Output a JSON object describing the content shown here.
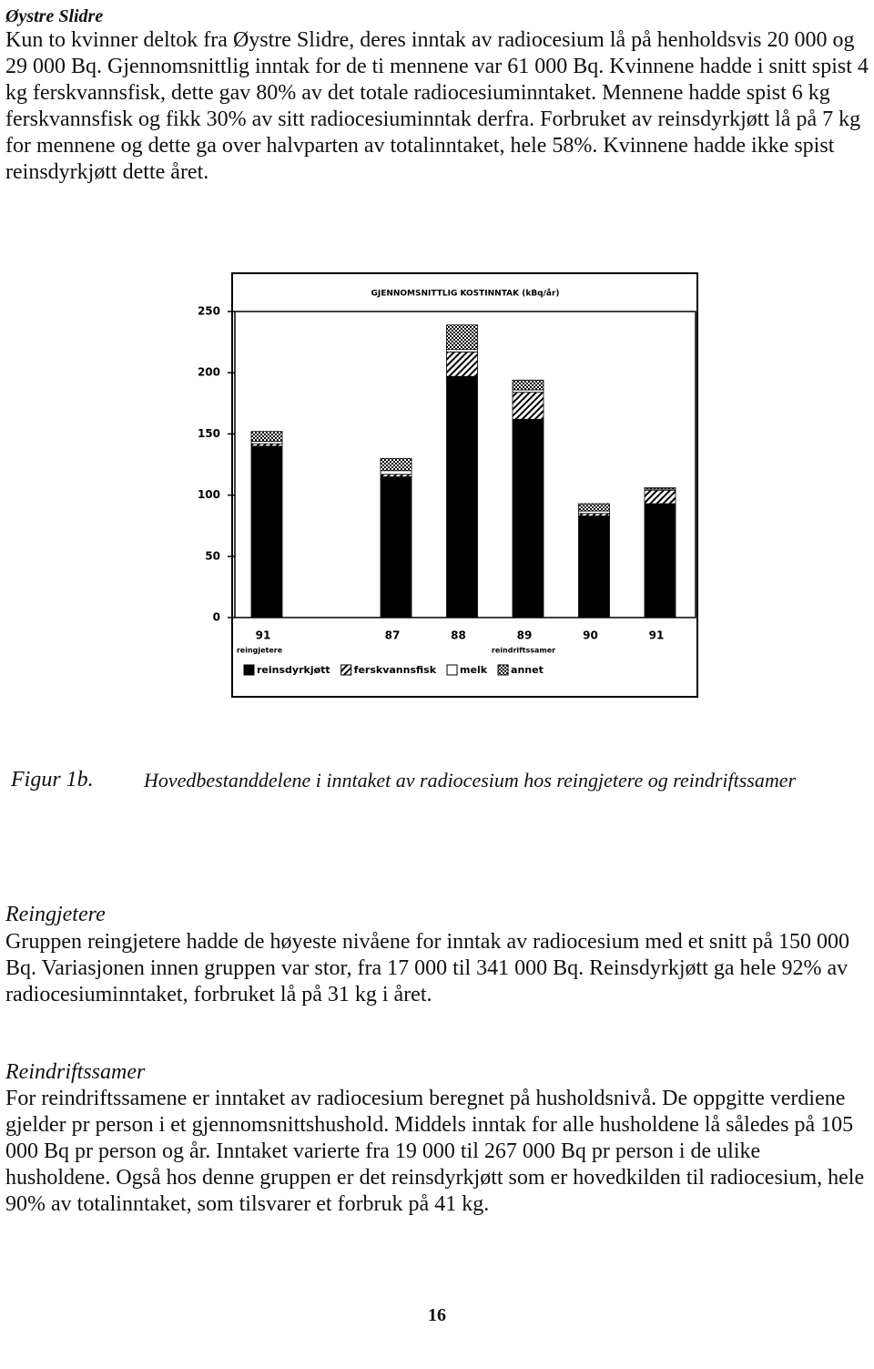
{
  "heading": "Øystre Slidre",
  "intro": "Kun to kvinner deltok fra Øystre Slidre, deres inntak av radiocesium lå på henholdsvis 20 000 og 29 000 Bq. Gjennomsnittlig inntak for de ti mennene var 61 000 Bq. Kvinnene hadde i snitt spist 4 kg ferskvannsfisk, dette gav 80% av det totale radiocesiuminntaket. Mennene hadde spist 6 kg ferskvannsfisk og fikk 30% av sitt radiocesiuminntak derfra. Forbruket av reinsdyrkjøtt lå på 7 kg for mennene og dette ga over halvparten av totalinntaket, hele 58%. Kvinnene hadde ikke spist reinsdyrkjøtt dette året.",
  "chart_data": {
    "type": "bar",
    "stacked": true,
    "title": "GJENNOMSNITTLIG KOSTINNTAK (kBq/år)",
    "categories": [
      "91",
      "87",
      "88",
      "89",
      "90",
      "91"
    ],
    "groups": [
      "reingjetere",
      "reindriftssamer"
    ],
    "series": [
      {
        "name": "reinsdyrkjøtt",
        "color": "#000000",
        "pattern": "solid",
        "values": [
          140,
          115,
          197,
          162,
          83,
          93
        ]
      },
      {
        "name": "ferskvannsfisk",
        "color": "#000000",
        "pattern": "hatch",
        "values": [
          2,
          2,
          20,
          22,
          2,
          11
        ]
      },
      {
        "name": "melk",
        "color": "#ffffff",
        "pattern": "solid",
        "values": [
          2,
          3,
          2,
          2,
          2,
          1
        ]
      },
      {
        "name": "annet",
        "color": "#000000",
        "pattern": "dots",
        "values": [
          8,
          10,
          20,
          8,
          6,
          1
        ]
      }
    ],
    "ylim": [
      0,
      250
    ],
    "yticks": [
      0,
      50,
      100,
      150,
      200,
      250
    ],
    "grid": false
  },
  "caption": {
    "label": "Figur 1b.",
    "text": "Hovedbestanddelene i inntaket av radiocesium hos reingjetere og reindriftssamer"
  },
  "sections": [
    {
      "title": "Reingjetere",
      "text": "Gruppen reingjetere hadde de høyeste nivåene for inntak av radiocesium med et snitt på 150 000 Bq. Variasjonen innen gruppen var stor, fra 17 000 til 341 000 Bq. Reinsdyrkjøtt ga hele 92% av radiocesiuminntaket, forbruket lå på 31 kg i året."
    },
    {
      "title": "Reindriftssamer",
      "text": "For reindriftssamene er inntaket av radiocesium beregnet på husholdsnivå. De oppgitte verdiene gjelder pr person i et gjennomsnittshushold. Middels inntak for alle husholdene lå således på 105 000 Bq pr person og år. Inntaket varierte fra 19 000 til 267 000 Bq pr person i de ulike husholdene. Også hos denne gruppen er det reinsdyrkjøtt som er hovedkilden til radiocesium, hele 90% av totalinntaket, som tilsvarer et forbruk på 41 kg."
    }
  ],
  "page_number": "16"
}
